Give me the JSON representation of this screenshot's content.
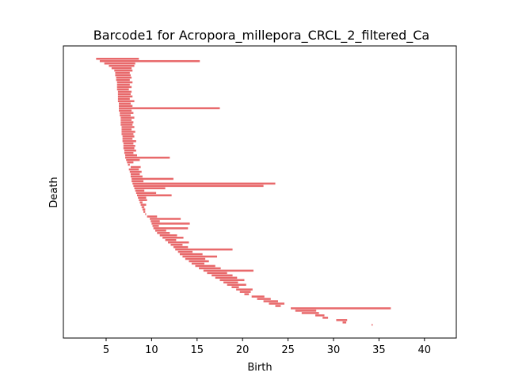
{
  "chart_data": {
    "type": "barcode",
    "title": "Barcode1 for Acropora_millepora_CRCL_2_filtered_Ca",
    "xlabel": "Birth",
    "ylabel": "Death",
    "xlim": [
      0.3,
      43.5
    ],
    "xticks": [
      5,
      10,
      15,
      20,
      25,
      30,
      35,
      40
    ],
    "xtick_labels": [
      "5",
      "10",
      "15",
      "20",
      "25",
      "30",
      "35",
      "40"
    ],
    "yticks_shown": false,
    "bar_color": "#e8696b",
    "intervals": [
      [
        3.9,
        8.6
      ],
      [
        4.3,
        15.3
      ],
      [
        4.8,
        8.2
      ],
      [
        5.3,
        8.1
      ],
      [
        5.6,
        7.8
      ],
      [
        5.9,
        7.9
      ],
      [
        6.0,
        7.6
      ],
      [
        6.0,
        7.7
      ],
      [
        6.1,
        7.8
      ],
      [
        6.1,
        7.6
      ],
      [
        6.2,
        7.9
      ],
      [
        6.2,
        7.6
      ],
      [
        6.2,
        7.8
      ],
      [
        6.2,
        7.5
      ],
      [
        6.3,
        7.8
      ],
      [
        6.3,
        7.7
      ],
      [
        6.3,
        7.9
      ],
      [
        6.3,
        7.6
      ],
      [
        6.3,
        8.1
      ],
      [
        6.4,
        7.7
      ],
      [
        6.4,
        7.9
      ],
      [
        6.4,
        17.5
      ],
      [
        6.4,
        7.8
      ],
      [
        6.5,
        8.0
      ],
      [
        6.5,
        7.7
      ],
      [
        6.6,
        8.1
      ],
      [
        6.6,
        7.8
      ],
      [
        6.6,
        8.0
      ],
      [
        6.6,
        7.9
      ],
      [
        6.7,
        8.1
      ],
      [
        6.7,
        7.8
      ],
      [
        6.7,
        8.2
      ],
      [
        6.7,
        8.0
      ],
      [
        6.8,
        8.1
      ],
      [
        6.8,
        7.9
      ],
      [
        6.8,
        8.3
      ],
      [
        6.9,
        8.0
      ],
      [
        6.9,
        8.2
      ],
      [
        6.9,
        8.1
      ],
      [
        7.0,
        8.3
      ],
      [
        7.0,
        8.0
      ],
      [
        7.1,
        8.4
      ],
      [
        7.1,
        12.0
      ],
      [
        7.2,
        8.7
      ],
      [
        7.3,
        8.0
      ],
      [
        7.4,
        7.6
      ],
      [
        7.7,
        8.8
      ],
      [
        7.5,
        8.6
      ],
      [
        7.6,
        8.9
      ],
      [
        7.7,
        8.7
      ],
      [
        7.7,
        9.0
      ],
      [
        7.8,
        12.4
      ],
      [
        7.8,
        9.1
      ],
      [
        7.9,
        23.6
      ],
      [
        8.0,
        22.3
      ],
      [
        8.1,
        11.5
      ],
      [
        8.2,
        9.2
      ],
      [
        8.3,
        10.5
      ],
      [
        8.4,
        12.2
      ],
      [
        8.5,
        9.4
      ],
      [
        8.6,
        9.5
      ],
      [
        8.7,
        9.0
      ],
      [
        8.8,
        9.4
      ],
      [
        8.9,
        9.2
      ],
      [
        9.0,
        9.3
      ],
      [
        9.1,
        9.3
      ],
      [
        9.3,
        9.4
      ],
      [
        9.5,
        10.6
      ],
      [
        9.8,
        13.2
      ],
      [
        9.9,
        10.9
      ],
      [
        10.0,
        14.2
      ],
      [
        10.1,
        10.8
      ],
      [
        10.2,
        14.0
      ],
      [
        10.4,
        11.6
      ],
      [
        10.6,
        12.0
      ],
      [
        10.9,
        12.8
      ],
      [
        11.2,
        13.5
      ],
      [
        11.5,
        12.7
      ],
      [
        11.8,
        14.1
      ],
      [
        12.1,
        13.4
      ],
      [
        12.4,
        14.0
      ],
      [
        12.6,
        18.9
      ],
      [
        12.9,
        14.5
      ],
      [
        13.1,
        15.6
      ],
      [
        13.4,
        17.2
      ],
      [
        13.7,
        15.9
      ],
      [
        14.1,
        16.3
      ],
      [
        14.4,
        15.8
      ],
      [
        14.8,
        17.0
      ],
      [
        15.2,
        17.6
      ],
      [
        15.7,
        21.2
      ],
      [
        16.1,
        18.3
      ],
      [
        16.6,
        18.9
      ],
      [
        17.0,
        19.4
      ],
      [
        17.5,
        20.2
      ],
      [
        17.9,
        19.5
      ],
      [
        18.3,
        20.4
      ],
      [
        18.8,
        19.6
      ],
      [
        19.3,
        21.1
      ],
      [
        19.7,
        20.9
      ],
      [
        20.2,
        20.7
      ],
      [
        21.0,
        22.4
      ],
      [
        21.6,
        23.1
      ],
      [
        22.3,
        23.9
      ],
      [
        22.9,
        24.6
      ],
      [
        23.6,
        24.2
      ],
      [
        25.3,
        36.3
      ],
      [
        25.8,
        28.1
      ],
      [
        26.5,
        28.4
      ],
      [
        28.0,
        29.0
      ],
      [
        28.8,
        29.4
      ],
      [
        30.3,
        31.5
      ],
      [
        31.0,
        31.4
      ],
      [
        34.2,
        34.3
      ]
    ]
  }
}
